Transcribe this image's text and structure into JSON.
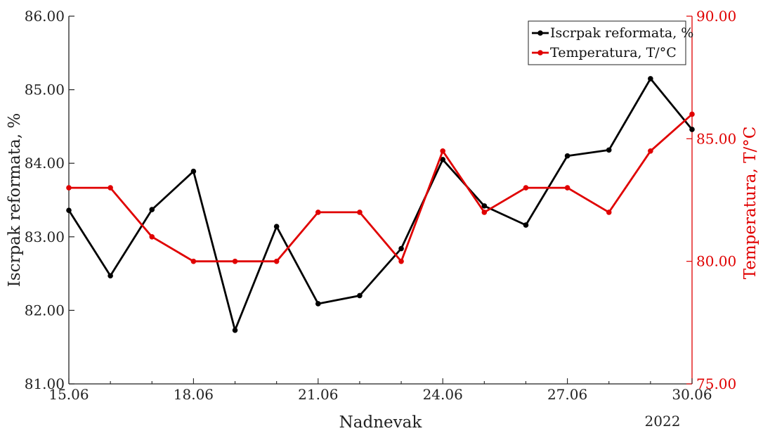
{
  "chart_data": {
    "type": "line",
    "xlabel": "Nadnevak",
    "x_year_label": "2022",
    "x": [
      "15.06",
      "16.06",
      "17.06",
      "18.06",
      "19.06",
      "20.06",
      "21.06",
      "22.06",
      "23.06",
      "24.06",
      "25.06",
      "26.06",
      "27.06",
      "28.06",
      "29.06",
      "30.06"
    ],
    "x_tick_labels": [
      "15.06",
      "18.06",
      "21.06",
      "24.06",
      "27.06",
      "30.06"
    ],
    "ylabel_left": "Iscrpak reformata, %",
    "ylim_left": [
      81.0,
      86.0
    ],
    "yticks_left": [
      "81.00",
      "82.00",
      "83.00",
      "84.00",
      "85.00",
      "86.00"
    ],
    "ylabel_right": "Temperatura, T/°C",
    "ylim_right": [
      75.0,
      90.0
    ],
    "yticks_right": [
      "75.00",
      "80.00",
      "85.00",
      "90.00"
    ],
    "legend_position": "top-right",
    "grid": false,
    "series": [
      {
        "name": "Iscrpak reformata, %",
        "axis": "left",
        "color": "#000000",
        "values": [
          83.36,
          82.47,
          83.37,
          83.89,
          81.73,
          83.14,
          82.09,
          82.2,
          82.84,
          84.05,
          83.42,
          83.16,
          84.1,
          84.18,
          85.15,
          84.46
        ]
      },
      {
        "name": "Temperatura, T/°C",
        "axis": "right",
        "color": "#e00000",
        "values": [
          83.0,
          83.0,
          81.0,
          80.0,
          80.0,
          80.0,
          82.0,
          82.0,
          80.0,
          84.5,
          82.0,
          83.0,
          83.0,
          82.0,
          84.5,
          86.0
        ]
      }
    ]
  }
}
